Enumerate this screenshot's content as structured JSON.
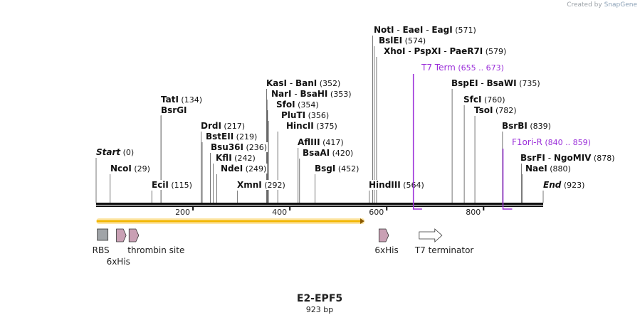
{
  "credit": {
    "prefix": "Created by",
    "brand": "SnapGene"
  },
  "construct": {
    "name": "E2-EPF5",
    "length_label": "923 bp",
    "length": 923
  },
  "scale": {
    "ticks": [
      200,
      400,
      600,
      800
    ]
  },
  "sites": [
    {
      "group": [
        {
          "name": "Start",
          "italic": true
        }
      ],
      "pos_label": "(0)",
      "pos": 0
    },
    {
      "group": [
        {
          "name": "NcoI"
        }
      ],
      "pos_label": "(29)",
      "pos": 29
    },
    {
      "group": [
        {
          "name": "EciI"
        }
      ],
      "pos_label": "(115)",
      "pos": 115
    },
    {
      "group": [
        {
          "name": "TatI"
        }
      ],
      "pos_label": "(134)",
      "pos": 134
    },
    {
      "group": [
        {
          "name": "BsrGI"
        }
      ],
      "pos_label": "",
      "pos": 134
    },
    {
      "group": [
        {
          "name": "DrdI"
        }
      ],
      "pos_label": "(217)",
      "pos": 217
    },
    {
      "group": [
        {
          "name": "BstEII"
        }
      ],
      "pos_label": "(219)",
      "pos": 219
    },
    {
      "group": [
        {
          "name": "Bsu36I"
        }
      ],
      "pos_label": "(236)",
      "pos": 236
    },
    {
      "group": [
        {
          "name": "KflI"
        }
      ],
      "pos_label": "(242)",
      "pos": 242
    },
    {
      "group": [
        {
          "name": "NdeI"
        }
      ],
      "pos_label": "(249)",
      "pos": 249
    },
    {
      "group": [
        {
          "name": "XmnI"
        }
      ],
      "pos_label": "(292)",
      "pos": 292
    },
    {
      "group": [
        {
          "name": "KasI"
        },
        {
          "name": "BanI"
        }
      ],
      "pos_label": "(352)",
      "pos": 352
    },
    {
      "group": [
        {
          "name": "NarI"
        },
        {
          "name": "BsaHI"
        }
      ],
      "pos_label": "(353)",
      "pos": 353
    },
    {
      "group": [
        {
          "name": "SfoI"
        }
      ],
      "pos_label": "(354)",
      "pos": 354
    },
    {
      "group": [
        {
          "name": "PluTI"
        }
      ],
      "pos_label": "(356)",
      "pos": 356
    },
    {
      "group": [
        {
          "name": "HincII"
        }
      ],
      "pos_label": "(375)",
      "pos": 375
    },
    {
      "group": [
        {
          "name": "AflIII"
        }
      ],
      "pos_label": "(417)",
      "pos": 417
    },
    {
      "group": [
        {
          "name": "BsaAI"
        }
      ],
      "pos_label": "(420)",
      "pos": 420
    },
    {
      "group": [
        {
          "name": "BsgI"
        }
      ],
      "pos_label": "(452)",
      "pos": 452
    },
    {
      "group": [
        {
          "name": "HindIII"
        }
      ],
      "pos_label": "(564)",
      "pos": 564
    },
    {
      "group": [
        {
          "name": "NotI"
        },
        {
          "name": "EaeI"
        },
        {
          "name": "EagI"
        }
      ],
      "pos_label": "(571)",
      "pos": 571
    },
    {
      "group": [
        {
          "name": "BslEI"
        }
      ],
      "pos_label": "(574)",
      "pos": 574
    },
    {
      "group": [
        {
          "name": "XhoI"
        },
        {
          "name": "PspXI"
        },
        {
          "name": "PaeR7I"
        }
      ],
      "pos_label": "(579)",
      "pos": 579
    },
    {
      "group": [
        {
          "name": "BspEI"
        },
        {
          "name": "BsaWI"
        }
      ],
      "pos_label": "(735)",
      "pos": 735
    },
    {
      "group": [
        {
          "name": "SfcI"
        }
      ],
      "pos_label": "(760)",
      "pos": 760
    },
    {
      "group": [
        {
          "name": "TsoI"
        }
      ],
      "pos_label": "(782)",
      "pos": 782
    },
    {
      "group": [
        {
          "name": "BsrBI"
        }
      ],
      "pos_label": "(839)",
      "pos": 839
    },
    {
      "group": [
        {
          "name": "BsrFI"
        },
        {
          "name": "NgoMIV"
        }
      ],
      "pos_label": "(878)",
      "pos": 878
    },
    {
      "group": [
        {
          "name": "NaeI"
        }
      ],
      "pos_label": "(880)",
      "pos": 880
    },
    {
      "group": [
        {
          "name": "End",
          "italic": true
        }
      ],
      "pos_label": "(923)",
      "pos": 923
    }
  ],
  "primers": [
    {
      "name": "T7 Term",
      "range_label": "(655 .. 673)",
      "start": 655,
      "end": 673,
      "color": "#9b30d9"
    },
    {
      "name": "F1ori-R",
      "range_label": "(840 .. 859)",
      "start": 840,
      "end": 859,
      "color": "#9b30d9"
    }
  ],
  "orf": {
    "start": 1,
    "end": 554,
    "fill": "#f2b705",
    "stroke": "#8a5a00"
  },
  "features": [
    {
      "name": "RBS",
      "label": "RBS",
      "shape": "box",
      "start": 1,
      "end": 23,
      "label_row": 1,
      "fill": "#a0a4a8"
    },
    {
      "name": "6xHis",
      "label": "6xHis",
      "shape": "arrow",
      "start": 42,
      "end": 59,
      "label_row": 2,
      "fill": "#c9a0b4"
    },
    {
      "name": "thrombin site",
      "label": "thrombin site",
      "shape": "arrow",
      "start": 68,
      "end": 85,
      "label_row": 1,
      "fill": "#c9a0b4"
    },
    {
      "name": "6xHis",
      "label": "6xHis",
      "shape": "arrow",
      "start": 584,
      "end": 601,
      "label_row": 1,
      "fill": "#c9a0b4"
    },
    {
      "name": "T7 terminator",
      "label": "T7 terminator",
      "shape": "arrow",
      "start": 667,
      "end": 714,
      "label_row": 1,
      "fill": "#ffffff"
    }
  ]
}
